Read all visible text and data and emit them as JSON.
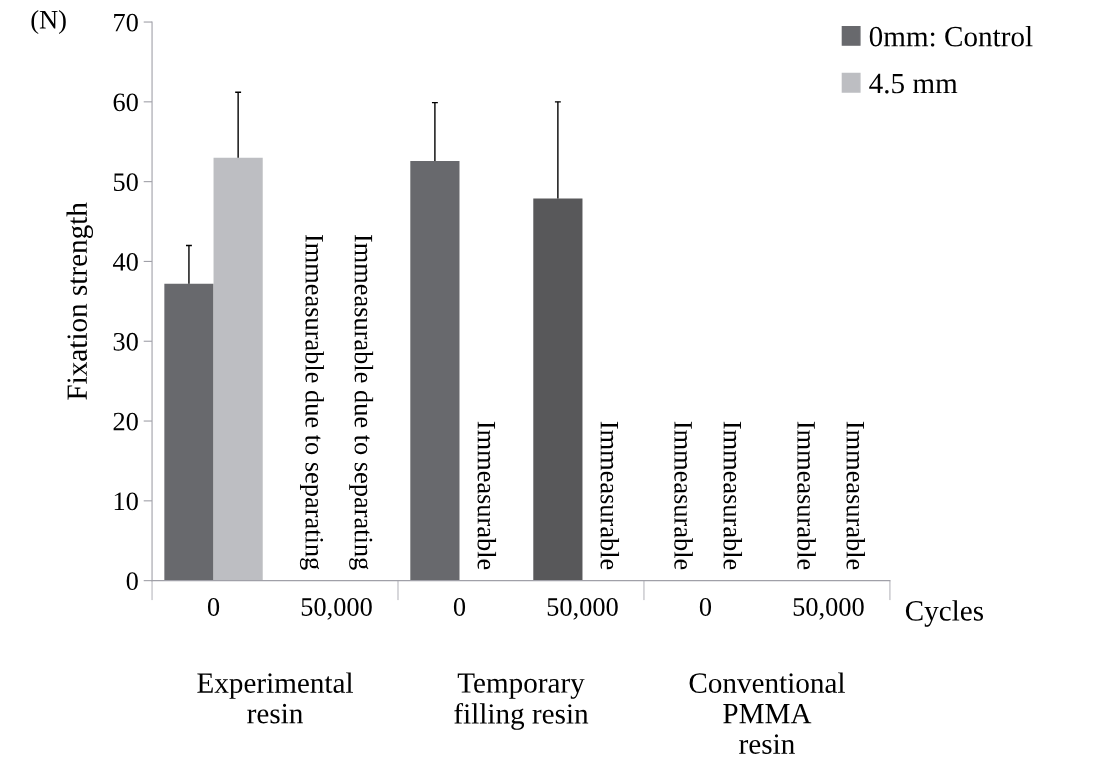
{
  "chart_data": {
    "type": "bar",
    "ylabel": "Fixation strength",
    "xlabel": "Cycles",
    "categories": [
      "0",
      "50,000",
      "0",
      "50,000",
      "0",
      "50,000"
    ],
    "series": [
      {
        "name": "0mm: Control",
        "color": "#68696d",
        "colors": [
          "#68696d",
          "#68696d",
          "#68696d",
          "#58585a",
          "#68696d",
          "#68696d"
        ],
        "values": [
          37.2,
          null,
          52.6,
          47.9,
          null,
          null
        ],
        "errors": [
          [
            37.2,
            42.0
          ],
          null,
          [
            52.6,
            59.9
          ],
          [
            47.9,
            60.0
          ],
          null,
          null
        ],
        "value_labels": [
          null,
          "Immeasurable due to separating",
          null,
          null,
          "Immeasurable",
          "Immeasurable"
        ]
      },
      {
        "name": "4.5 mm",
        "color": "#bdbec2",
        "values": [
          53.0,
          null,
          null,
          null,
          null,
          null
        ],
        "errors": [
          [
            53.0,
            61.2
          ],
          null,
          null,
          null,
          null,
          null
        ],
        "value_labels": [
          null,
          "Immeasurable due to separating",
          "Immeasurable",
          "Immeasurable",
          "Immeasurable",
          "Immeasurable"
        ]
      }
    ],
    "ylim": [
      0,
      70
    ],
    "yticks": [
      0,
      10,
      20,
      30,
      40,
      50,
      60,
      70
    ],
    "annotations": [
      "(N)",
      "Experimental\nresin",
      "Temporary\nfilling resin",
      "Conventional\nPMMA\nresin"
    ],
    "legend": "top right",
    "grid": false
  }
}
